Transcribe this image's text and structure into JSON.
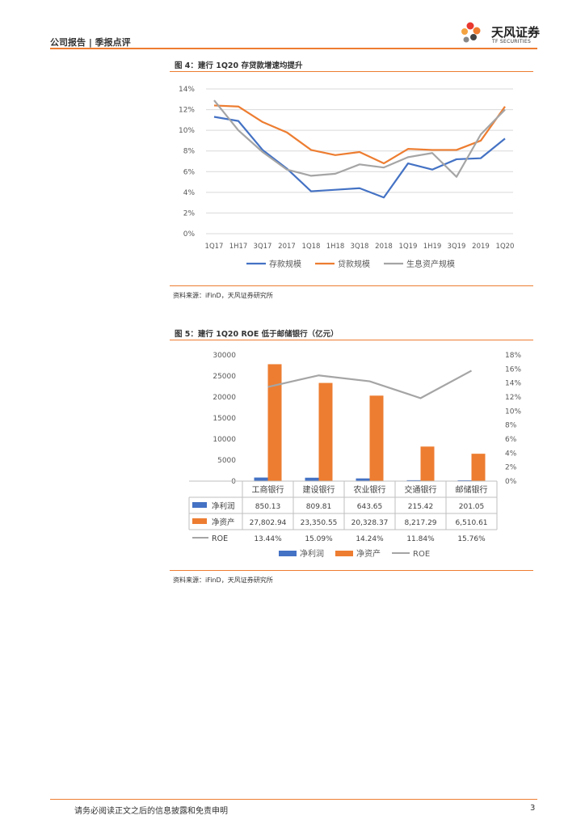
{
  "header": {
    "left": "公司报告 | 季报点评",
    "brand": "天风证券",
    "brand_sub": "TF SECURITIES",
    "accent": "#ee7d31"
  },
  "figure4": {
    "title": "图 4：建行 1Q20 存贷款增速均提升",
    "source": "资料来源：iFinD，天风证券研究所"
  },
  "figure5": {
    "title": "图 5：建行 1Q20 ROE 低于邮储银行（亿元）",
    "source": "资料来源：iFinD，天风证券研究所"
  },
  "chart_data": [
    {
      "type": "line",
      "categories": [
        "1Q17",
        "1H17",
        "3Q17",
        "2017",
        "1Q18",
        "1H18",
        "3Q18",
        "2018",
        "1Q19",
        "1H19",
        "3Q19",
        "2019",
        "1Q20"
      ],
      "yticks": [
        "0%",
        "2%",
        "4%",
        "6%",
        "8%",
        "10%",
        "12%",
        "14%"
      ],
      "ylim": [
        0,
        14
      ],
      "grid": true,
      "legend_position": "bottom",
      "series": [
        {
          "name": "存款规模",
          "color": "#4472c4",
          "values": [
            11.3,
            10.9,
            8.1,
            6.3,
            4.1,
            4.25,
            4.4,
            3.5,
            6.8,
            6.2,
            7.2,
            7.3,
            9.2
          ]
        },
        {
          "name": "贷款规模",
          "color": "#ed7d31",
          "values": [
            12.4,
            12.3,
            10.8,
            9.8,
            8.1,
            7.6,
            7.9,
            6.8,
            8.2,
            8.1,
            8.1,
            9.0,
            12.3
          ]
        },
        {
          "name": "生息资产规模",
          "color": "#a5a5a5",
          "values": [
            12.9,
            10.0,
            7.9,
            6.2,
            5.6,
            5.8,
            6.7,
            6.4,
            7.4,
            7.8,
            5.5,
            9.6,
            12.0
          ]
        }
      ]
    },
    {
      "type": "bar",
      "categories": [
        "工商银行",
        "建设银行",
        "农业银行",
        "交通银行",
        "邮储银行"
      ],
      "yticks_left": [
        "0",
        "5000",
        "10000",
        "15000",
        "20000",
        "25000",
        "30000"
      ],
      "ylim_left": [
        0,
        30000
      ],
      "yticks_right": [
        "0%",
        "2%",
        "4%",
        "6%",
        "8%",
        "10%",
        "12%",
        "14%",
        "16%",
        "18%"
      ],
      "ylim_right": [
        0,
        18
      ],
      "legend_position": "bottom",
      "series": [
        {
          "name": "净利润",
          "color": "#4472c4",
          "values": [
            850.13,
            809.81,
            643.65,
            215.42,
            201.05
          ],
          "labels": [
            "850.13",
            "809.81",
            "643.65",
            "215.42",
            "201.05"
          ]
        },
        {
          "name": "净资产",
          "color": "#ed7d31",
          "values": [
            27802.94,
            23350.55,
            20328.37,
            8217.29,
            6510.61
          ],
          "labels": [
            "27,802.94",
            "23,350.55",
            "20,328.37",
            "8,217.29",
            "6,510.61"
          ]
        },
        {
          "name": "ROE",
          "color": "#a5a5a5",
          "axis": "right",
          "values": [
            13.44,
            15.09,
            14.24,
            11.84,
            15.76
          ],
          "labels": [
            "13.44%",
            "15.09%",
            "14.24%",
            "11.84%",
            "15.76%"
          ]
        }
      ]
    }
  ],
  "footer": {
    "disclaimer": "请务必阅读正文之后的信息披露和免责申明",
    "page": "3"
  }
}
